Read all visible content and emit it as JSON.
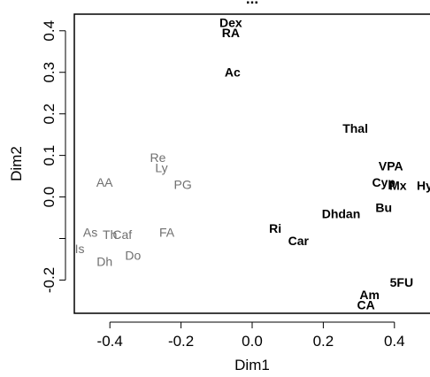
{
  "chart_data": {
    "type": "scatter",
    "title": "... ",
    "xlabel": "Dim1",
    "ylabel": "Dim2",
    "xlim": [
      -0.5,
      0.5
    ],
    "ylim": [
      -0.28,
      0.44
    ],
    "xticks": [
      -0.4,
      -0.2,
      0.0,
      0.2,
      0.4
    ],
    "xtick_labels": [
      "-0.4",
      "-0.2",
      "0.0",
      "0.2",
      "0.4"
    ],
    "yticks": [
      -0.2,
      -0.1,
      0.0,
      0.1,
      0.2,
      0.3,
      0.4
    ],
    "ytick_labels": [
      "-0.2",
      "",
      "0.0",
      "0.1",
      "0.2",
      "0.3",
      "0.4"
    ],
    "grid": false,
    "colors": {
      "bold_group": "#000000",
      "gray_group": "#6f6f6f"
    },
    "points": [
      {
        "label": "Dex",
        "x": -0.06,
        "y": 0.42,
        "group": "bold"
      },
      {
        "label": "RA",
        "x": -0.06,
        "y": 0.395,
        "group": "bold"
      },
      {
        "label": "Ac",
        "x": -0.055,
        "y": 0.3,
        "group": "bold"
      },
      {
        "label": "Thal",
        "x": 0.29,
        "y": 0.165,
        "group": "bold"
      },
      {
        "label": "VPA",
        "x": 0.39,
        "y": 0.075,
        "group": "bold"
      },
      {
        "label": "Cyp",
        "x": 0.37,
        "y": 0.035,
        "group": "bold"
      },
      {
        "label": "Mx",
        "x": 0.41,
        "y": 0.028,
        "group": "bold"
      },
      {
        "label": "Hy",
        "x": 0.485,
        "y": 0.028,
        "group": "bold"
      },
      {
        "label": "Bu",
        "x": 0.37,
        "y": -0.025,
        "group": "bold"
      },
      {
        "label": "Dhdan",
        "x": 0.25,
        "y": -0.04,
        "group": "bold"
      },
      {
        "label": "Ri",
        "x": 0.065,
        "y": -0.075,
        "group": "bold"
      },
      {
        "label": "Car",
        "x": 0.13,
        "y": -0.105,
        "group": "bold"
      },
      {
        "label": "5FU",
        "x": 0.42,
        "y": -0.205,
        "group": "bold"
      },
      {
        "label": "Am",
        "x": 0.33,
        "y": -0.235,
        "group": "bold"
      },
      {
        "label": "CA",
        "x": 0.32,
        "y": -0.26,
        "group": "bold"
      },
      {
        "label": "Re",
        "x": -0.265,
        "y": 0.095,
        "group": "gray"
      },
      {
        "label": "Ly",
        "x": -0.255,
        "y": 0.07,
        "group": "gray"
      },
      {
        "label": "AA",
        "x": -0.415,
        "y": 0.035,
        "group": "gray"
      },
      {
        "label": "PG",
        "x": -0.195,
        "y": 0.03,
        "group": "gray"
      },
      {
        "label": "FA",
        "x": -0.24,
        "y": -0.085,
        "group": "gray"
      },
      {
        "label": "As",
        "x": -0.455,
        "y": -0.085,
        "group": "gray"
      },
      {
        "label": "Th",
        "x": -0.4,
        "y": -0.09,
        "group": "gray"
      },
      {
        "label": "Caf",
        "x": -0.365,
        "y": -0.09,
        "group": "gray"
      },
      {
        "label": "Is",
        "x": -0.485,
        "y": -0.125,
        "group": "gray"
      },
      {
        "label": "Dh",
        "x": -0.415,
        "y": -0.155,
        "group": "gray"
      },
      {
        "label": "Do",
        "x": -0.335,
        "y": -0.14,
        "group": "gray"
      }
    ]
  }
}
